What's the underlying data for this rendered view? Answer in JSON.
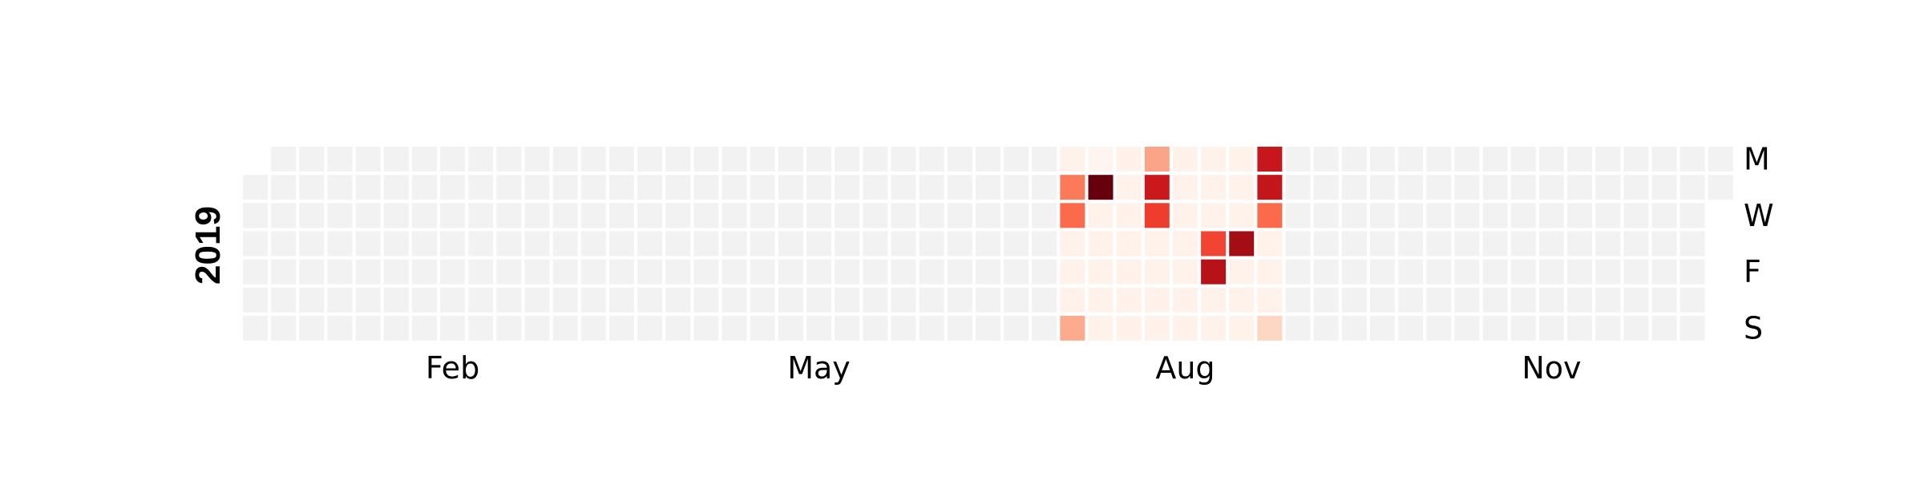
{
  "chart_data": {
    "type": "heatmap",
    "title": "",
    "xlabel": "",
    "ylabel": "",
    "year": "2019",
    "month_labels": [
      {
        "label": "Feb",
        "week": 7
      },
      {
        "label": "May",
        "week": 20
      },
      {
        "label": "Aug",
        "week": 33
      },
      {
        "label": "Nov",
        "week": 46
      }
    ],
    "day_labels": [
      {
        "label": "M",
        "day": 0
      },
      {
        "label": "W",
        "day": 2
      },
      {
        "label": "F",
        "day": 4
      },
      {
        "label": "S",
        "day": 6
      }
    ],
    "start_weekday": 1,
    "days_in_year": 365,
    "empty_color": "#f2f2f2",
    "colormap": "Reds",
    "value_range": [
      0,
      1
    ],
    "active_range": {
      "start_week": 29,
      "end_week": 36
    },
    "active_baseline": 0.02,
    "values": [
      {
        "week": 29,
        "day": 1,
        "value": 0.45
      },
      {
        "week": 29,
        "day": 2,
        "value": 0.5
      },
      {
        "week": 29,
        "day": 6,
        "value": 0.3
      },
      {
        "week": 30,
        "day": 1,
        "value": 1.0
      },
      {
        "week": 30,
        "day": 0,
        "value": 0.0
      },
      {
        "week": 32,
        "day": 0,
        "value": 0.32
      },
      {
        "week": 32,
        "day": 1,
        "value": 0.75
      },
      {
        "week": 32,
        "day": 2,
        "value": 0.62
      },
      {
        "week": 34,
        "day": 3,
        "value": 0.6
      },
      {
        "week": 34,
        "day": 4,
        "value": 0.82
      },
      {
        "week": 35,
        "day": 3,
        "value": 0.88
      },
      {
        "week": 36,
        "day": 0,
        "value": 0.77
      },
      {
        "week": 36,
        "day": 1,
        "value": 0.78
      },
      {
        "week": 36,
        "day": 2,
        "value": 0.5
      },
      {
        "week": 36,
        "day": 6,
        "value": 0.16
      }
    ]
  }
}
